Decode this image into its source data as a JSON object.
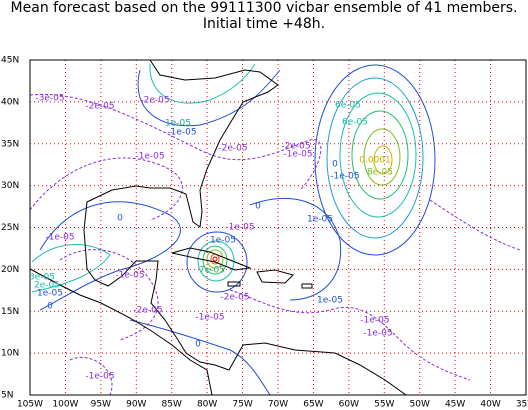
{
  "title": "Mean forecast based on the 99111300 vicbar ensemble of 41 members.",
  "subtitle": "Initial time +48h.",
  "lon_labels": [
    "105W",
    "100W",
    "95W",
    "90W",
    "85W",
    "80W",
    "75W",
    "70W",
    "65W",
    "60W",
    "55W",
    "50W",
    "45W",
    "40W",
    "35W"
  ],
  "lat_labels": [
    "5N",
    "10N",
    "15N",
    "20N",
    "25N",
    "30N",
    "35N",
    "40N",
    "45N"
  ],
  "contour_labels": [
    "-3e-05",
    "-2e-05",
    "-2e-05",
    "1e-05",
    "-1e-05",
    "-2e-05",
    "-1e-05",
    "-2e-05",
    "-1e-05",
    "0",
    "-1e-05",
    "6e-05",
    "6e-05",
    "0.0001",
    "8e-05",
    "-1e-05",
    "1e-05",
    "-1e-05",
    "1e-05",
    "3e-05",
    "2e-05",
    "1e-05",
    "0",
    "-1e-05",
    "0",
    "0",
    "-2e-05",
    "-2e-05",
    "-1e-05",
    "7e-05",
    "1e-05",
    "-1e-05",
    "-1e-05",
    "0",
    "-1e-05"
  ]
}
